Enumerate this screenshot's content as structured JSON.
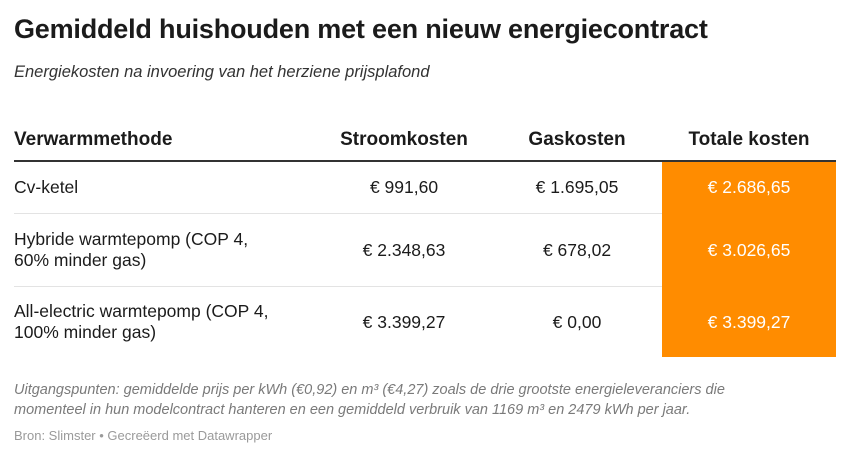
{
  "header": {
    "title": "Gemiddeld huishouden met een nieuw energiecontract",
    "subtitle": "Energiekosten na invoering van het herziene prijsplafond"
  },
  "table": {
    "columns": [
      "Verwarmmethode",
      "Stroomkosten",
      "Gaskosten",
      "Totale kosten"
    ],
    "rows": [
      {
        "method_line1": "Cv-ketel",
        "method_line2": "",
        "stroom": "€ 991,60",
        "gas": "€ 1.695,05",
        "totaal": "€ 2.686,65"
      },
      {
        "method_line1": "Hybride warmtepomp (COP 4,",
        "method_line2": "60% minder gas)",
        "stroom": "€ 2.348,63",
        "gas": "€ 678,02",
        "totaal": "€ 3.026,65"
      },
      {
        "method_line1": "All-electric warmtepomp (COP 4,",
        "method_line2": "100% minder gas)",
        "stroom": "€ 3.399,27",
        "gas": "€ 0,00",
        "totaal": "€ 3.399,27"
      }
    ],
    "highlight_color": "#ff8c00"
  },
  "footer": {
    "notes_line1": "Uitgangspunten: gemiddelde prijs per kWh (€0,92) en m³ (€4,27) zoals de drie grootste energieleveranciers die",
    "notes_line2": "momenteel in hun modelcontract hanteren en een gemiddeld verbruik van 1169 m³ en 2479 kWh per jaar.",
    "source": "Bron: Slimster • Gecreëerd met Datawrapper"
  }
}
